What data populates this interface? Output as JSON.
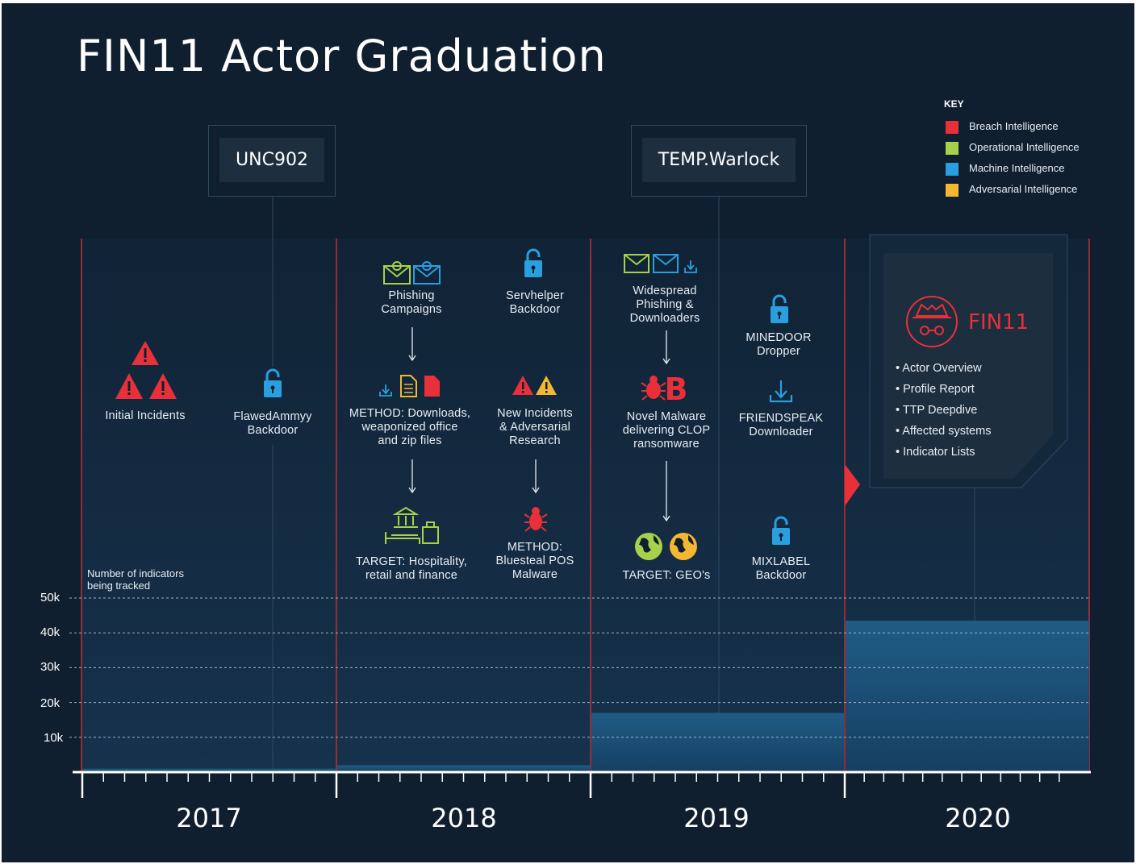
{
  "title": "FIN11 Actor Graduation",
  "key": {
    "title": "KEY",
    "items": [
      {
        "label": "Breach Intelligence",
        "color": "#e8303a"
      },
      {
        "label": "Operational Intelligence",
        "color": "#a8d14b"
      },
      {
        "label": "Machine Intelligence",
        "color": "#2a9fe0"
      },
      {
        "label": "Adversarial Intelligence",
        "color": "#f5b731"
      }
    ]
  },
  "tags": {
    "unc": "UNC902",
    "temp": "TEMP.Warlock"
  },
  "events": {
    "initial_incidents": "Initial Incidents",
    "flawedammyy": "FlawedAmmyy\nBackdoor",
    "phishing": "Phishing\nCampaigns",
    "servhelper": "Servhelper\nBackdoor",
    "method_downloads": "METHOD: Downloads,\nweaponized office\nand zip files",
    "new_incidents": "New Incidents\n& Adversarial\nResearch",
    "target_hospitality": "TARGET: Hospitality,\nretail and finance",
    "method_bluesteal": "METHOD:\nBluesteal POS\nMalware",
    "widespread": "Widespread\nPhishing &\nDownloaders",
    "minedoor": "MINEDOOR\nDropper",
    "novel_malware": "Novel Malware\ndelivering CLOP\nransomware",
    "friendspeak": "FRIENDSPEAK\nDownloader",
    "target_geos": "TARGET: GEO's",
    "mixlabel": "MIXLABEL\nBackdoor"
  },
  "fin11": {
    "name": "FIN11",
    "items": [
      "• Actor Overview",
      "• Profile Report",
      "• TTP Deepdive",
      "• Affected systems",
      "• Indicator Lists"
    ]
  },
  "chart_data": {
    "type": "area",
    "ylabel": "Number of indicators\nbeing tracked",
    "y_ticks": [
      "50k",
      "40k",
      "30k",
      "20k",
      "10k"
    ],
    "ylim": [
      0,
      50000
    ],
    "categories": [
      "2017",
      "2018",
      "2019",
      "2020"
    ],
    "values": [
      1000,
      2000,
      17000,
      43500
    ]
  }
}
